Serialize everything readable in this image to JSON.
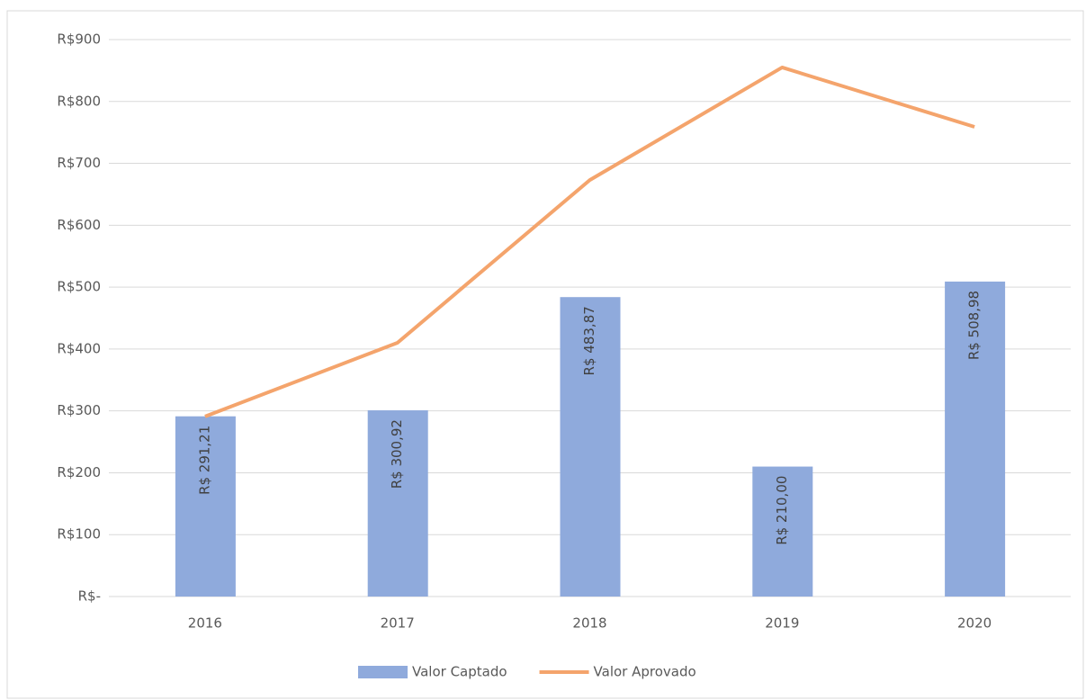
{
  "chart_data": {
    "type": "bar",
    "categories": [
      "2016",
      "2017",
      "2018",
      "2019",
      "2020"
    ],
    "series": [
      {
        "name": "Valor Captado",
        "type": "bar",
        "color": "#8faadc",
        "values": [
          291.21,
          300.92,
          483.87,
          210.0,
          508.98
        ],
        "value_labels": [
          "R$ 291,21",
          "R$ 300,92",
          "R$ 483,87",
          "R$ 210,00",
          "R$ 508,98"
        ]
      },
      {
        "name": "Valor Aprovado",
        "type": "line",
        "color": "#f4a46c",
        "values": [
          291,
          410,
          673,
          855,
          759
        ]
      }
    ],
    "ylim": [
      0,
      900
    ],
    "yticks": [
      {
        "value": 0,
        "label": "R$-"
      },
      {
        "value": 100,
        "label": "R$100"
      },
      {
        "value": 200,
        "label": "R$200"
      },
      {
        "value": 300,
        "label": "R$300"
      },
      {
        "value": 400,
        "label": "R$400"
      },
      {
        "value": 500,
        "label": "R$500"
      },
      {
        "value": 600,
        "label": "R$600"
      },
      {
        "value": 700,
        "label": "R$700"
      },
      {
        "value": 800,
        "label": "R$800"
      },
      {
        "value": 900,
        "label": "R$900"
      }
    ],
    "grid": true,
    "legend": "bottom"
  }
}
